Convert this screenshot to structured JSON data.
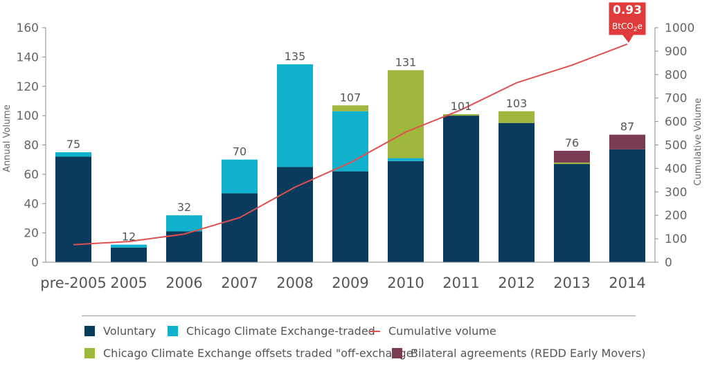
{
  "chart_data": {
    "type": "bar",
    "stacked": true,
    "categories": [
      "pre-2005",
      "2005",
      "2006",
      "2007",
      "2008",
      "2009",
      "2010",
      "2011",
      "2012",
      "2013",
      "2014"
    ],
    "series": [
      {
        "name": "Voluntary",
        "color": "#0b3b5c",
        "values": [
          72,
          10,
          21,
          47,
          65,
          62,
          69,
          100,
          95,
          67,
          77
        ]
      },
      {
        "name": "Chicago Climate Exchange-traded",
        "color": "#0fb1cd",
        "values": [
          3,
          2,
          11,
          23,
          70,
          41,
          2,
          0,
          0,
          0,
          0
        ]
      },
      {
        "name": "Chicago Climate Exchange offsets traded \"off-exchange\"",
        "color": "#9db83d",
        "values": [
          0,
          0,
          0,
          0,
          0,
          4,
          60,
          1,
          8,
          1,
          0
        ]
      },
      {
        "name": "Bilateral agreements (REDD Early Movers)",
        "color": "#7a3c55",
        "values": [
          0,
          0,
          0,
          0,
          0,
          0,
          0,
          0,
          0,
          8,
          10
        ]
      }
    ],
    "totals": [
      "75",
      "12",
      "32",
      "70",
      "135",
      "107",
      "131",
      "101",
      "103",
      "76",
      "87"
    ],
    "line": {
      "name": "Cumulative volume",
      "color": "#e05050",
      "axis": "right",
      "values": [
        75,
        88,
        120,
        190,
        320,
        425,
        555,
        650,
        765,
        840,
        930
      ]
    },
    "ylabel": "Annual Volume",
    "y2label": "Cumulative Volume",
    "ylim": [
      0,
      160
    ],
    "y2lim": [
      0,
      1000
    ],
    "yticks": [
      "0",
      "20",
      "40",
      "60",
      "80",
      "100",
      "120",
      "140",
      "160"
    ],
    "y2ticks": [
      "0",
      "100",
      "200",
      "300",
      "400",
      "500",
      "600",
      "700",
      "800",
      "900",
      "1000"
    ],
    "callout": {
      "value": "0.93",
      "unit_main": "BtCO",
      "unit_sub": "2",
      "unit_end": "e",
      "color": "#e03a3a"
    },
    "legend_position": "bottom"
  },
  "legend": {
    "voluntary": "Voluntary",
    "ccx": "Chicago Climate Exchange-traded",
    "cumulative": "Cumulative volume",
    "offx": "Chicago Climate Exchange offsets traded \"off-exchange\"",
    "bilateral": "Bilateral agreements (REDD Early Movers)"
  }
}
